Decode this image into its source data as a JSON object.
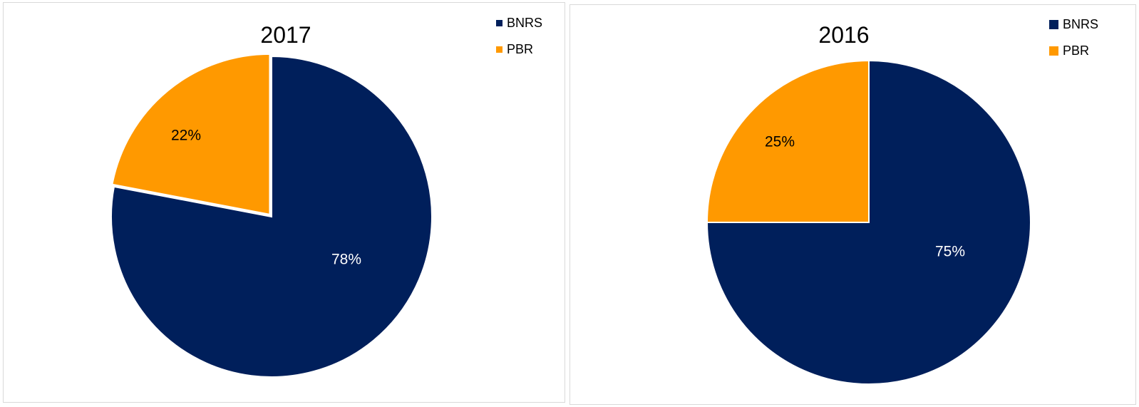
{
  "chart_data": [
    {
      "type": "pie",
      "title": "2017",
      "categories": [
        "BNRS",
        "PBR"
      ],
      "values": [
        78,
        22
      ],
      "data_labels": [
        "78%",
        "22%"
      ],
      "colors": [
        "#001f5b",
        "#ff9900"
      ],
      "label_colors": [
        "#ffffff",
        "#000000"
      ],
      "legend": {
        "placement": "top-right",
        "entries": [
          "BNRS",
          "PBR"
        ]
      }
    },
    {
      "type": "pie",
      "title": "2016",
      "categories": [
        "BNRS",
        "PBR"
      ],
      "values": [
        75,
        25
      ],
      "data_labels": [
        "75%",
        "25%"
      ],
      "colors": [
        "#001f5b",
        "#ff9900"
      ],
      "label_colors": [
        "#ffffff",
        "#000000"
      ],
      "legend": {
        "placement": "top-right",
        "entries": [
          "BNRS",
          "PBR"
        ]
      }
    }
  ]
}
